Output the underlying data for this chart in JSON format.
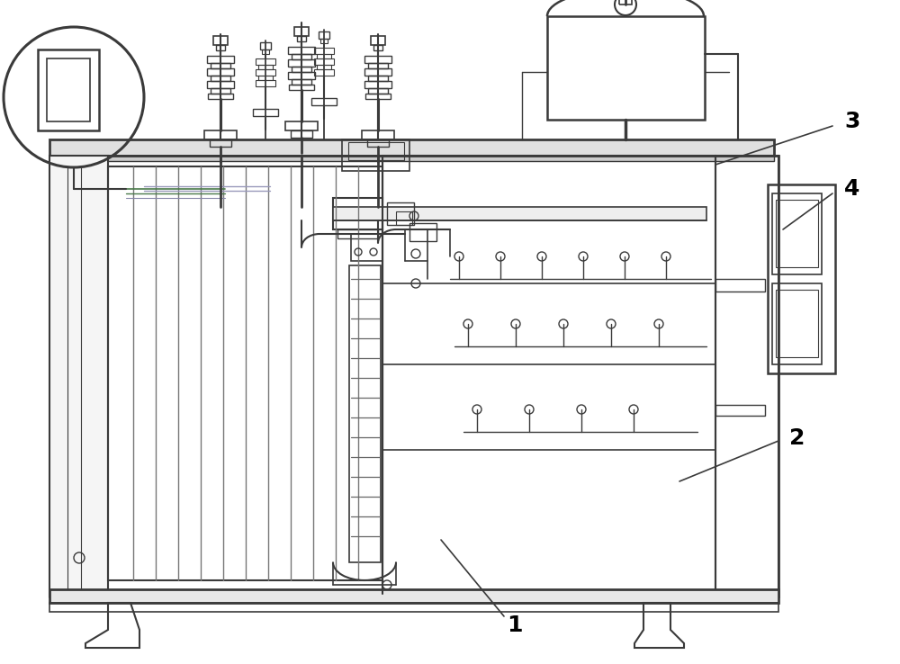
{
  "bg_color": "#ffffff",
  "lc": "#3a3a3a",
  "lc_thin": "#555555",
  "gc": "#4a7a4a",
  "figsize": [
    10.0,
    7.38
  ],
  "dpi": 100
}
